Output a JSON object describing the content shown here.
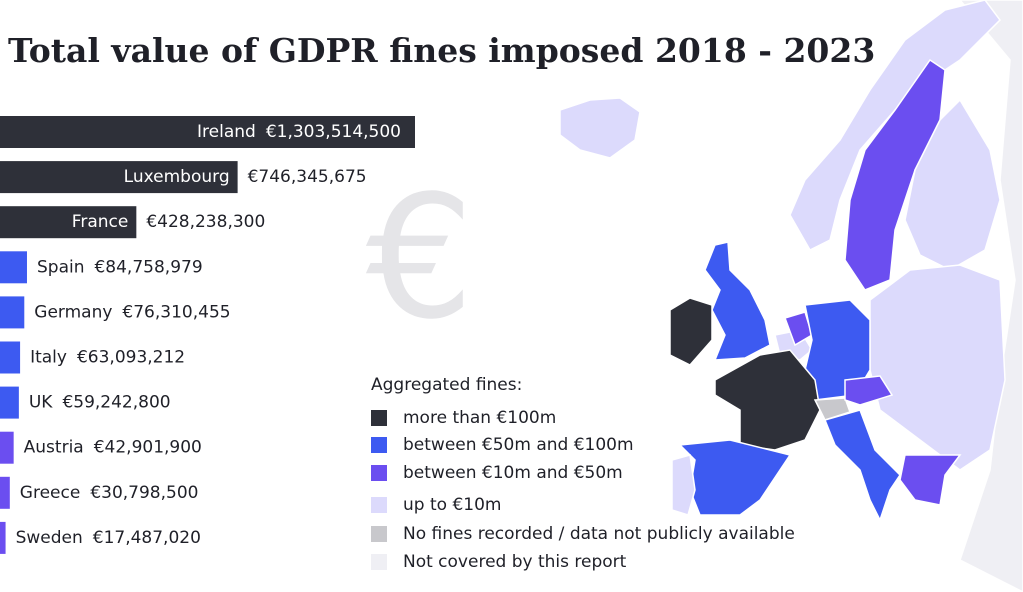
{
  "chart_data": {
    "type": "bar",
    "orientation": "horizontal",
    "title": "Total value of GDPR fines imposed 2018 - 2023",
    "watermark": "€",
    "categories": [
      "Ireland",
      "Luxembourg",
      "France",
      "Spain",
      "Germany",
      "Italy",
      "UK",
      "Austria",
      "Greece",
      "Sweden"
    ],
    "values": [
      1303514500,
      746345675,
      428238300,
      84758979,
      76310455,
      63093212,
      59242800,
      42901900,
      30798500,
      17487020
    ],
    "value_labels": [
      "€1,303,514,500",
      "€746,345,675",
      "€428,238,300",
      "€84,758,979",
      "€76,310,455",
      "€63,093,212",
      "€59,242,800",
      "€42,901,900",
      "€30,798,500",
      "€17,487,020"
    ],
    "colors": [
      "#2e3039",
      "#2e3039",
      "#2e3039",
      "#3d5af1",
      "#3d5af1",
      "#3d5af1",
      "#3d5af1",
      "#6b4ef0",
      "#6b4ef0",
      "#6b4ef0"
    ],
    "legend": {
      "title": "Aggregated fines:",
      "items": [
        {
          "name": "more than €100m",
          "color": "#2e3039"
        },
        {
          "name": "between €50m and €100m",
          "color": "#3d5af1"
        },
        {
          "name": "between €10m and €50m",
          "color": "#6b4ef0"
        },
        {
          "name": "up to €10m",
          "color": "#dcdafc"
        },
        {
          "name": "No fines recorded / data not publicly available",
          "color": "#c8c8cc"
        },
        {
          "name": "Not covered by this report",
          "color": "#efeff4"
        }
      ]
    }
  }
}
